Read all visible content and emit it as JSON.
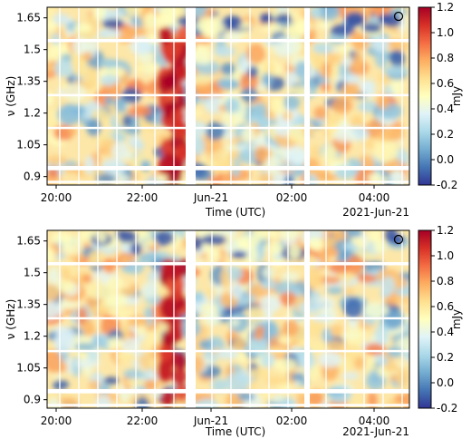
{
  "chart_data": [
    {
      "type": "heatmap",
      "title": "",
      "xlabel": "Time (UTC)",
      "ylabel": "ν (GHz)",
      "x_tick_labels": [
        "20:00",
        "22:00",
        "Jun-21",
        "02:00",
        "04:00"
      ],
      "x_offset_label": "2021-Jun-21",
      "y_tick_labels": [
        "0.9",
        "1.05",
        "1.2",
        "1.35",
        "1.5",
        "1.65"
      ],
      "y_ticks": [
        0.9,
        1.05,
        1.2,
        1.35,
        1.5,
        1.65
      ],
      "ylim": [
        0.86,
        1.7
      ],
      "colorbar": {
        "label": "mJy",
        "ticks": [
          -0.2,
          0.0,
          0.2,
          0.4,
          0.6,
          0.8,
          1.0,
          1.2
        ],
        "tick_labels": [
          "-0.2",
          "0.0",
          "0.2",
          "0.4",
          "0.6",
          "0.8",
          "1.0",
          "1.2"
        ],
        "range": [
          -0.2,
          1.2
        ],
        "colormap": "RdYlBu_r"
      },
      "beam_marker": "circle-top-right",
      "grid": false
    },
    {
      "type": "heatmap",
      "title": "",
      "xlabel": "Time (UTC)",
      "ylabel": "ν (GHz)",
      "x_tick_labels": [
        "20:00",
        "22:00",
        "Jun-21",
        "02:00",
        "04:00"
      ],
      "x_offset_label": "2021-Jun-21",
      "y_tick_labels": [
        "0.9",
        "1.05",
        "1.2",
        "1.35",
        "1.5",
        "1.65"
      ],
      "y_ticks": [
        0.9,
        1.05,
        1.2,
        1.35,
        1.5,
        1.65
      ],
      "ylim": [
        0.86,
        1.7
      ],
      "colorbar": {
        "label": "mJy",
        "ticks": [
          -0.2,
          0.0,
          0.2,
          0.4,
          0.6,
          0.8,
          1.0,
          1.2
        ],
        "tick_labels": [
          "-0.2",
          "0.0",
          "0.2",
          "0.4",
          "0.6",
          "0.8",
          "1.0",
          "1.2"
        ],
        "range": [
          -0.2,
          1.2
        ],
        "colormap": "RdYlBu_r"
      },
      "beam_marker": "circle-top-right",
      "grid": false
    }
  ],
  "colors": {
    "deep_red": "#a50026",
    "deep_blue": "#313695",
    "neutral": "#ffffbf"
  }
}
